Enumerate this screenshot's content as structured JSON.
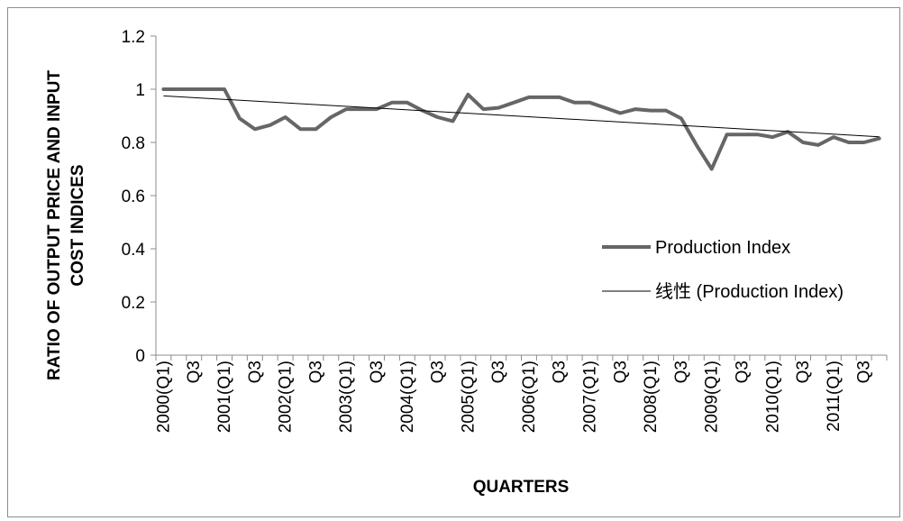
{
  "chart_data": {
    "type": "line",
    "title": "",
    "xlabel": "QUARTERS",
    "ylabel": "RATIO OF OUTPUT PRICE AND INPUT COST INDICES",
    "ylim": [
      0,
      1.2
    ],
    "yticks": [
      "0",
      "0.2",
      "0.4",
      "0.6",
      "0.8",
      "1",
      "1.2"
    ],
    "xtick_labels": [
      "2000(Q1)",
      "Q3",
      "2001(Q1)",
      "Q3",
      "2002(Q1)",
      "Q3",
      "2003(Q1)",
      "Q3",
      "2004(Q1)",
      "Q3",
      "2005(Q1)",
      "Q3",
      "2006(Q1)",
      "Q3",
      "2007(Q1)",
      "Q3",
      "2008(Q1)",
      "Q3",
      "2009(Q1)",
      "Q3",
      "2010(Q1)",
      "Q3",
      "2011(Q1)",
      "Q3"
    ],
    "grid": false,
    "legend_position": "right",
    "series": [
      {
        "name": "Production Index",
        "color": "#666666",
        "values": [
          1.0,
          1.0,
          1.0,
          1.0,
          1.0,
          0.89,
          0.85,
          0.865,
          0.895,
          0.85,
          0.85,
          0.895,
          0.925,
          0.925,
          0.925,
          0.95,
          0.95,
          0.92,
          0.895,
          0.88,
          0.98,
          0.925,
          0.93,
          0.95,
          0.97,
          0.97,
          0.97,
          0.95,
          0.95,
          0.93,
          0.91,
          0.925,
          0.92,
          0.92,
          0.89,
          0.79,
          0.7,
          0.83,
          0.83,
          0.83,
          0.82,
          0.84,
          0.8,
          0.79,
          0.82,
          0.8,
          0.8,
          0.815
        ]
      },
      {
        "name": "线性 (Production Index)",
        "color": "#000000",
        "values": [
          0.975,
          0.8212
        ]
      }
    ]
  }
}
